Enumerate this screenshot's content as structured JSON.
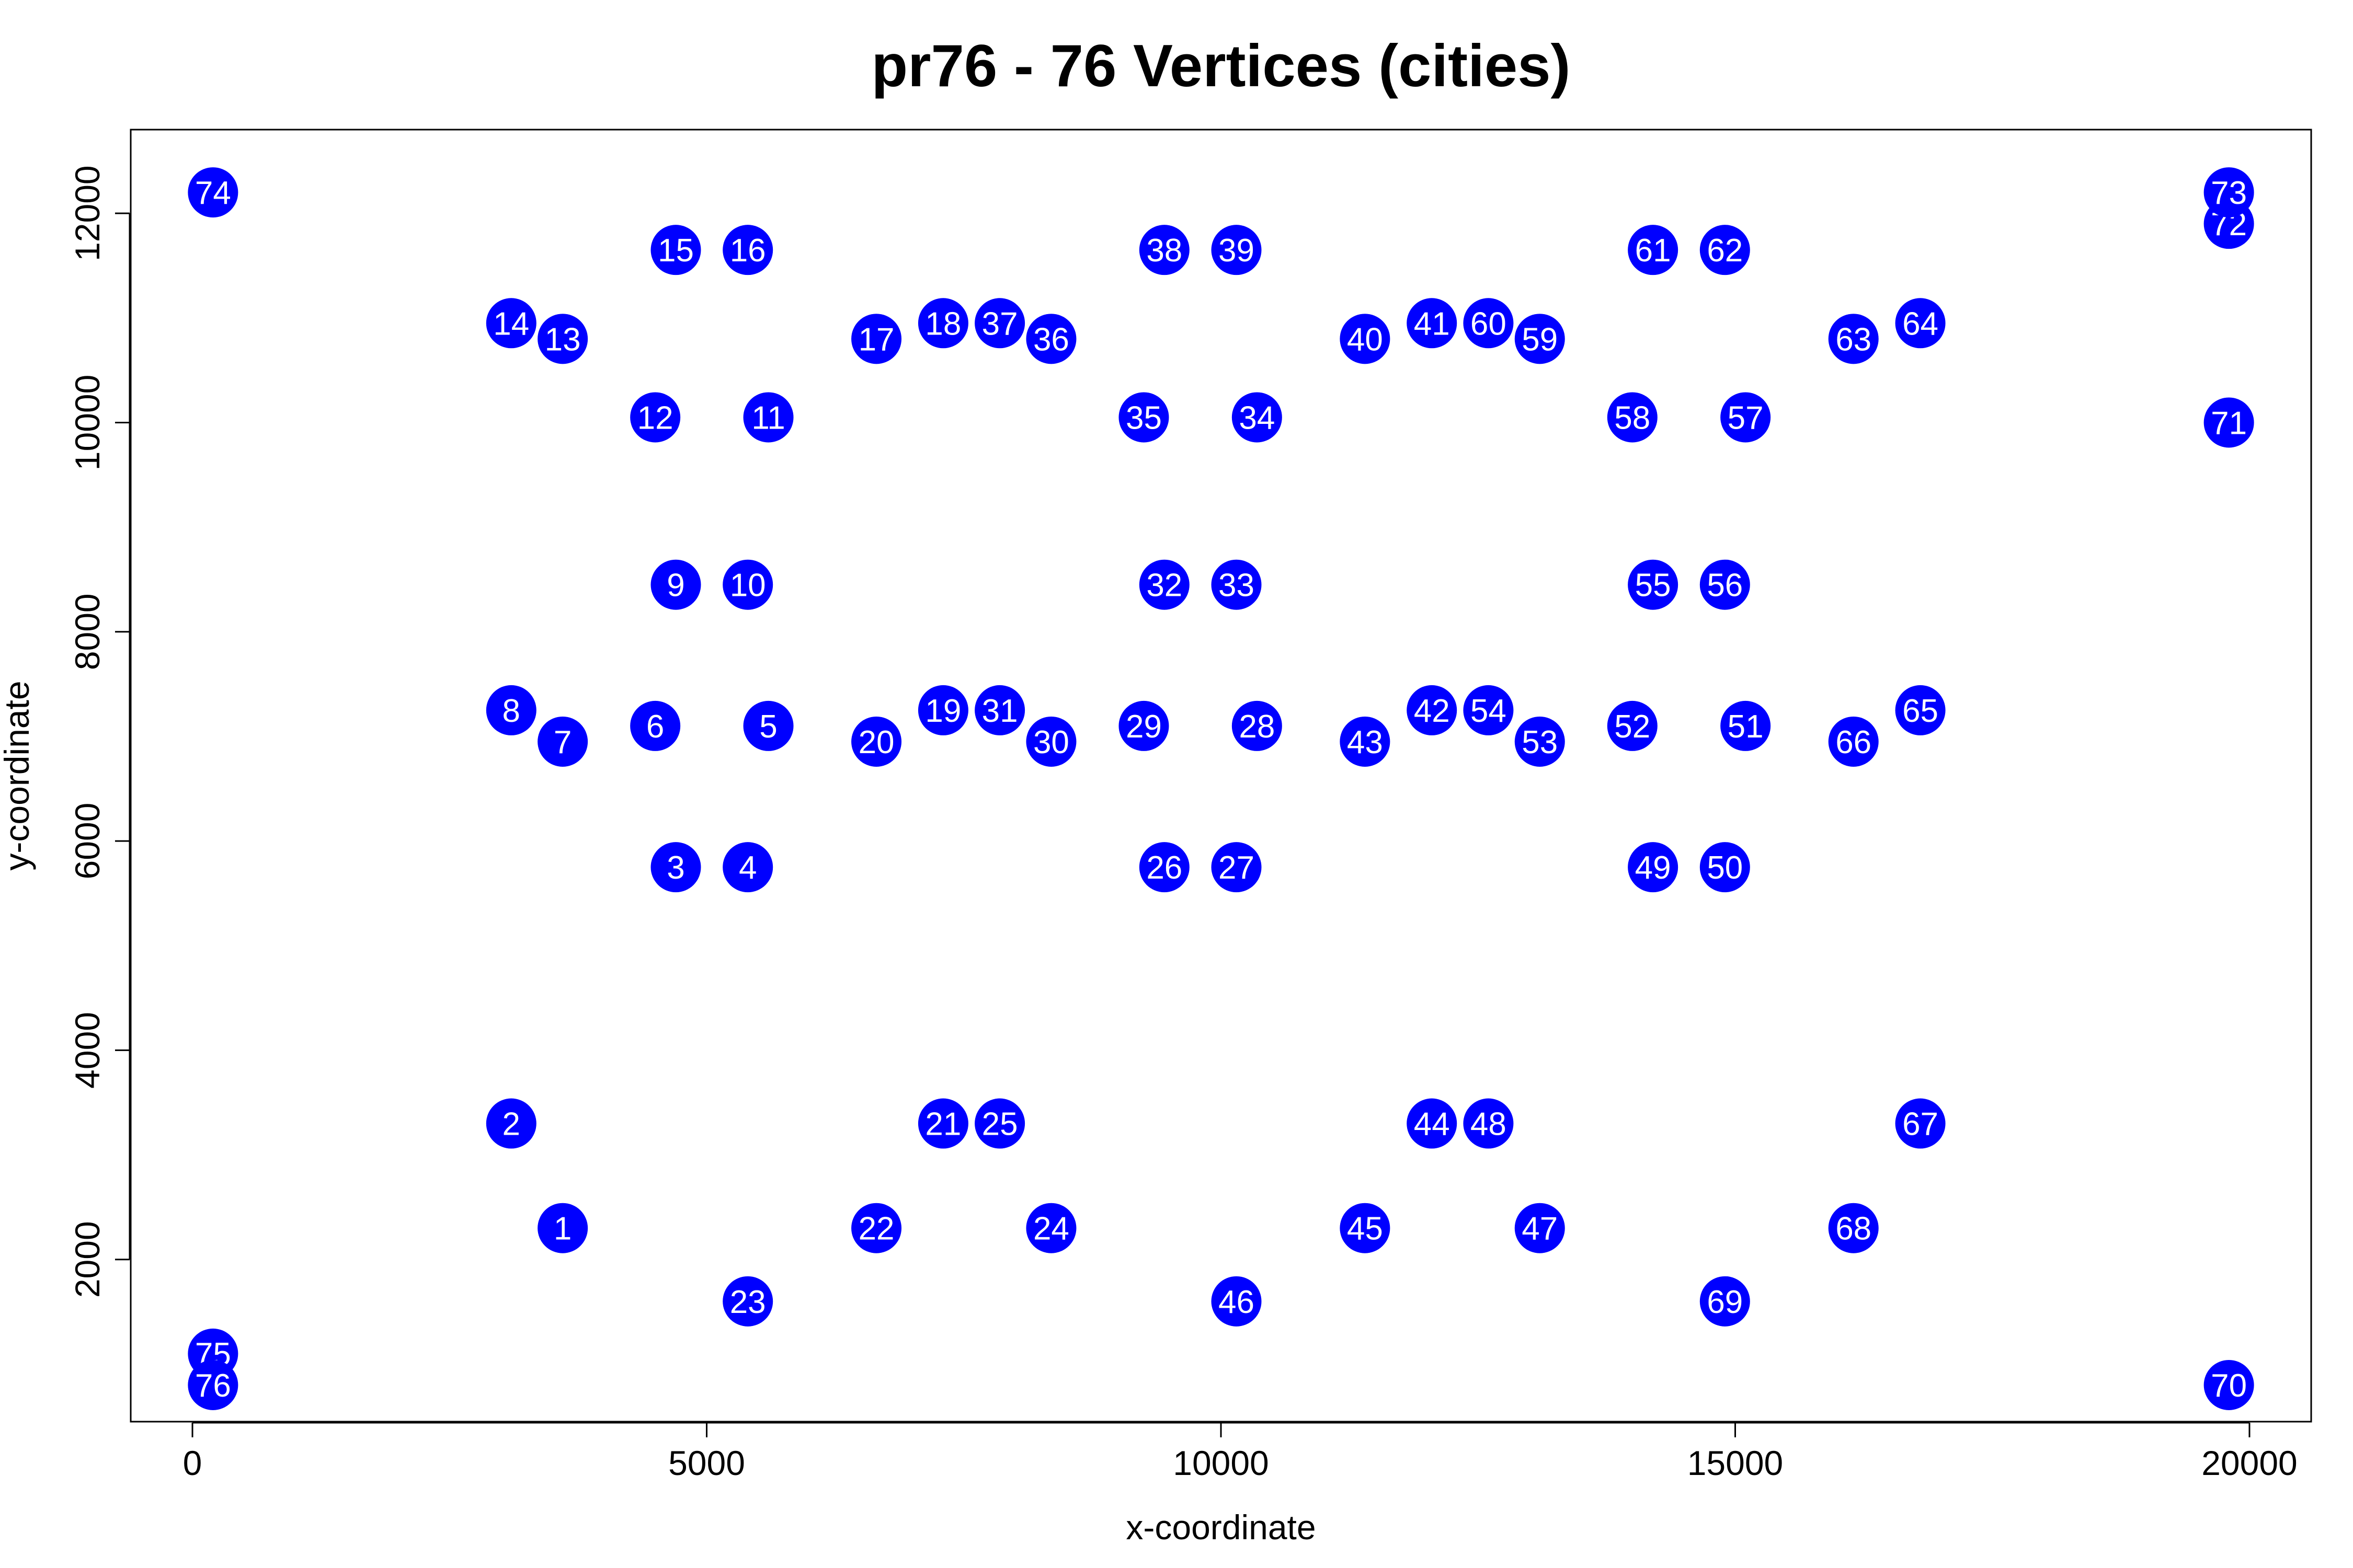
{
  "chart_data": {
    "type": "scatter",
    "title": "pr76 - 76 Vertices (cities)",
    "xlabel": "x-coordinate",
    "ylabel": "y-coordinate",
    "xlim": [
      -600,
      20600
    ],
    "ylim": [
      450,
      12800
    ],
    "xticks": [
      0,
      5000,
      10000,
      15000,
      20000
    ],
    "yticks": [
      2000,
      4000,
      6000,
      8000,
      10000,
      12000
    ],
    "grid": false,
    "marker_color": "#0000ff",
    "label_color": "#ffffff",
    "points": [
      {
        "id": "1",
        "x": 3600,
        "y": 2300
      },
      {
        "id": "2",
        "x": 3100,
        "y": 3300
      },
      {
        "id": "3",
        "x": 4700,
        "y": 5750
      },
      {
        "id": "4",
        "x": 5400,
        "y": 5750
      },
      {
        "id": "5",
        "x": 5600,
        "y": 7100
      },
      {
        "id": "6",
        "x": 4500,
        "y": 7100
      },
      {
        "id": "7",
        "x": 3600,
        "y": 6950
      },
      {
        "id": "8",
        "x": 3100,
        "y": 7250
      },
      {
        "id": "9",
        "x": 4700,
        "y": 8450
      },
      {
        "id": "10",
        "x": 5400,
        "y": 8450
      },
      {
        "id": "11",
        "x": 5600,
        "y": 10050
      },
      {
        "id": "12",
        "x": 4500,
        "y": 10050
      },
      {
        "id": "13",
        "x": 3600,
        "y": 10800
      },
      {
        "id": "14",
        "x": 3100,
        "y": 10950
      },
      {
        "id": "15",
        "x": 4700,
        "y": 11650
      },
      {
        "id": "16",
        "x": 5400,
        "y": 11650
      },
      {
        "id": "17",
        "x": 6650,
        "y": 10800
      },
      {
        "id": "18",
        "x": 7300,
        "y": 10950
      },
      {
        "id": "19",
        "x": 7300,
        "y": 7250
      },
      {
        "id": "20",
        "x": 6650,
        "y": 6950
      },
      {
        "id": "21",
        "x": 7300,
        "y": 3300
      },
      {
        "id": "22",
        "x": 6650,
        "y": 2300
      },
      {
        "id": "23",
        "x": 5400,
        "y": 1600
      },
      {
        "id": "24",
        "x": 8350,
        "y": 2300
      },
      {
        "id": "25",
        "x": 7850,
        "y": 3300
      },
      {
        "id": "26",
        "x": 9450,
        "y": 5750
      },
      {
        "id": "27",
        "x": 10150,
        "y": 5750
      },
      {
        "id": "28",
        "x": 10350,
        "y": 7100
      },
      {
        "id": "29",
        "x": 9250,
        "y": 7100
      },
      {
        "id": "30",
        "x": 8350,
        "y": 6950
      },
      {
        "id": "31",
        "x": 7850,
        "y": 7250
      },
      {
        "id": "32",
        "x": 9450,
        "y": 8450
      },
      {
        "id": "33",
        "x": 10150,
        "y": 8450
      },
      {
        "id": "34",
        "x": 10350,
        "y": 10050
      },
      {
        "id": "35",
        "x": 9250,
        "y": 10050
      },
      {
        "id": "36",
        "x": 8350,
        "y": 10800
      },
      {
        "id": "37",
        "x": 7850,
        "y": 10950
      },
      {
        "id": "38",
        "x": 9450,
        "y": 11650
      },
      {
        "id": "39",
        "x": 10150,
        "y": 11650
      },
      {
        "id": "40",
        "x": 11400,
        "y": 10800
      },
      {
        "id": "41",
        "x": 12050,
        "y": 10950
      },
      {
        "id": "42",
        "x": 12050,
        "y": 7250
      },
      {
        "id": "43",
        "x": 11400,
        "y": 6950
      },
      {
        "id": "44",
        "x": 12050,
        "y": 3300
      },
      {
        "id": "45",
        "x": 11400,
        "y": 2300
      },
      {
        "id": "46",
        "x": 10150,
        "y": 1600
      },
      {
        "id": "47",
        "x": 13100,
        "y": 2300
      },
      {
        "id": "48",
        "x": 12600,
        "y": 3300
      },
      {
        "id": "49",
        "x": 14200,
        "y": 5750
      },
      {
        "id": "50",
        "x": 14900,
        "y": 5750
      },
      {
        "id": "51",
        "x": 15100,
        "y": 7100
      },
      {
        "id": "52",
        "x": 14000,
        "y": 7100
      },
      {
        "id": "53",
        "x": 13100,
        "y": 6950
      },
      {
        "id": "54",
        "x": 12600,
        "y": 7250
      },
      {
        "id": "55",
        "x": 14200,
        "y": 8450
      },
      {
        "id": "56",
        "x": 14900,
        "y": 8450
      },
      {
        "id": "57",
        "x": 15100,
        "y": 10050
      },
      {
        "id": "58",
        "x": 14000,
        "y": 10050
      },
      {
        "id": "59",
        "x": 13100,
        "y": 10800
      },
      {
        "id": "60",
        "x": 12600,
        "y": 10950
      },
      {
        "id": "61",
        "x": 14200,
        "y": 11650
      },
      {
        "id": "62",
        "x": 14900,
        "y": 11650
      },
      {
        "id": "63",
        "x": 16150,
        "y": 10800
      },
      {
        "id": "64",
        "x": 16800,
        "y": 10950
      },
      {
        "id": "65",
        "x": 16800,
        "y": 7250
      },
      {
        "id": "66",
        "x": 16150,
        "y": 6950
      },
      {
        "id": "67",
        "x": 16800,
        "y": 3300
      },
      {
        "id": "68",
        "x": 16150,
        "y": 2300
      },
      {
        "id": "69",
        "x": 14900,
        "y": 1600
      },
      {
        "id": "70",
        "x": 19800,
        "y": 800
      },
      {
        "id": "71",
        "x": 19800,
        "y": 10000
      },
      {
        "id": "72",
        "x": 19800,
        "y": 11900
      },
      {
        "id": "73",
        "x": 19800,
        "y": 12200
      },
      {
        "id": "74",
        "x": 200,
        "y": 12200
      },
      {
        "id": "75",
        "x": 200,
        "y": 1100
      },
      {
        "id": "76",
        "x": 200,
        "y": 800
      }
    ]
  }
}
